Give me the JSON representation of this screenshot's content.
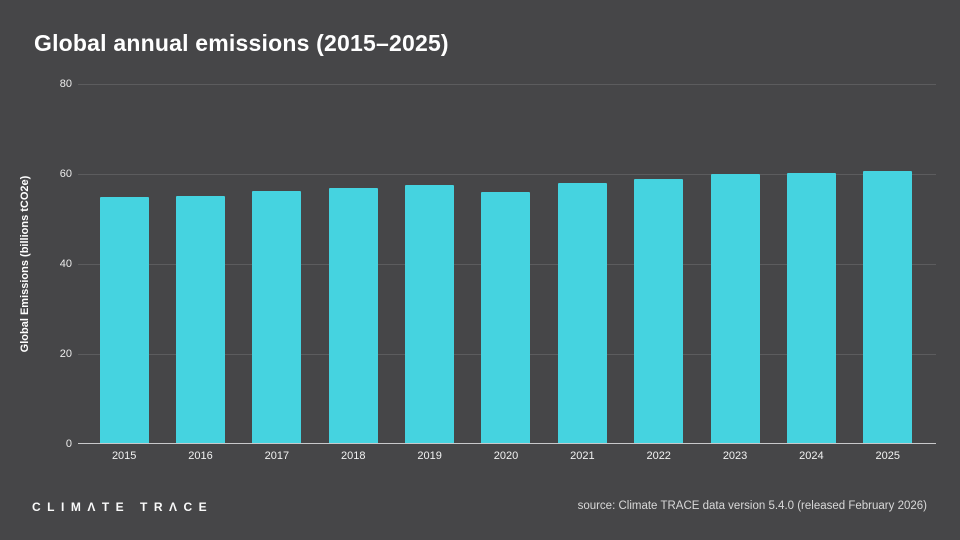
{
  "title": "Global annual emissions (2015–2025)",
  "chart_data": {
    "type": "bar",
    "title": "Global annual emissions (2015–2025)",
    "categories": [
      "2015",
      "2016",
      "2017",
      "2018",
      "2019",
      "2020",
      "2021",
      "2022",
      "2023",
      "2024",
      "2025"
    ],
    "values": [
      54.8,
      55.2,
      56.3,
      56.9,
      57.6,
      55.9,
      58.1,
      58.9,
      59.9,
      60.3,
      60.6
    ],
    "xlabel": "",
    "ylabel": "Global Emissions (billions tCO2e)",
    "ylim": [
      0,
      80
    ],
    "yticks": [
      0,
      20,
      40,
      60,
      80
    ],
    "grid": true,
    "legend": false,
    "bar_color": "#45d3e0"
  },
  "colors": {
    "background": "#464648",
    "bar": "#45d3e0",
    "gridline": "#5c5c5e",
    "axis_line": "#c9c9cb",
    "title_text": "#ffffff",
    "tick_text": "#ececec",
    "source_text": "#d8d8d8"
  },
  "footer": {
    "logo": "CLIMATE TRACE",
    "source": "source: Climate TRACE data version 5.4.0 (released February 2026)"
  }
}
